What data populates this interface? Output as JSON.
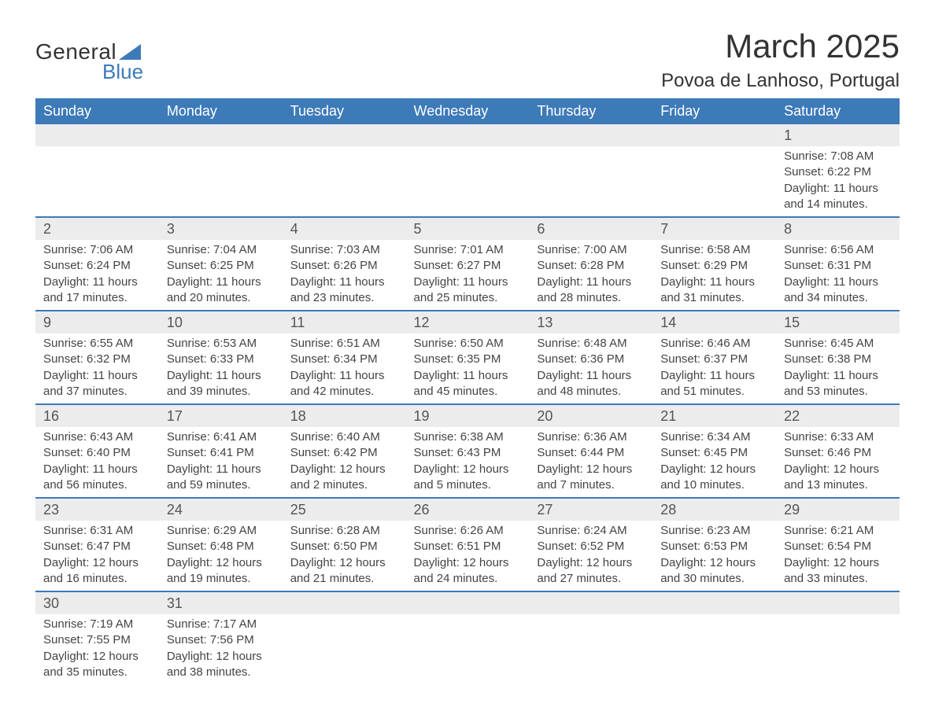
{
  "logo": {
    "text1": "General",
    "text2": "Blue",
    "triangle_color": "#3d7ab8"
  },
  "title": "March 2025",
  "location": "Povoa de Lanhoso, Portugal",
  "colors": {
    "header_bg": "#3d7ab8",
    "header_text": "#ffffff",
    "daynum_bg": "#ececec",
    "border": "#3d7ab8",
    "body_text": "#444444"
  },
  "day_names": [
    "Sunday",
    "Monday",
    "Tuesday",
    "Wednesday",
    "Thursday",
    "Friday",
    "Saturday"
  ],
  "weeks": [
    [
      null,
      null,
      null,
      null,
      null,
      null,
      {
        "d": "1",
        "sr": "Sunrise: 7:08 AM",
        "ss": "Sunset: 6:22 PM",
        "dl1": "Daylight: 11 hours",
        "dl2": "and 14 minutes."
      }
    ],
    [
      {
        "d": "2",
        "sr": "Sunrise: 7:06 AM",
        "ss": "Sunset: 6:24 PM",
        "dl1": "Daylight: 11 hours",
        "dl2": "and 17 minutes."
      },
      {
        "d": "3",
        "sr": "Sunrise: 7:04 AM",
        "ss": "Sunset: 6:25 PM",
        "dl1": "Daylight: 11 hours",
        "dl2": "and 20 minutes."
      },
      {
        "d": "4",
        "sr": "Sunrise: 7:03 AM",
        "ss": "Sunset: 6:26 PM",
        "dl1": "Daylight: 11 hours",
        "dl2": "and 23 minutes."
      },
      {
        "d": "5",
        "sr": "Sunrise: 7:01 AM",
        "ss": "Sunset: 6:27 PM",
        "dl1": "Daylight: 11 hours",
        "dl2": "and 25 minutes."
      },
      {
        "d": "6",
        "sr": "Sunrise: 7:00 AM",
        "ss": "Sunset: 6:28 PM",
        "dl1": "Daylight: 11 hours",
        "dl2": "and 28 minutes."
      },
      {
        "d": "7",
        "sr": "Sunrise: 6:58 AM",
        "ss": "Sunset: 6:29 PM",
        "dl1": "Daylight: 11 hours",
        "dl2": "and 31 minutes."
      },
      {
        "d": "8",
        "sr": "Sunrise: 6:56 AM",
        "ss": "Sunset: 6:31 PM",
        "dl1": "Daylight: 11 hours",
        "dl2": "and 34 minutes."
      }
    ],
    [
      {
        "d": "9",
        "sr": "Sunrise: 6:55 AM",
        "ss": "Sunset: 6:32 PM",
        "dl1": "Daylight: 11 hours",
        "dl2": "and 37 minutes."
      },
      {
        "d": "10",
        "sr": "Sunrise: 6:53 AM",
        "ss": "Sunset: 6:33 PM",
        "dl1": "Daylight: 11 hours",
        "dl2": "and 39 minutes."
      },
      {
        "d": "11",
        "sr": "Sunrise: 6:51 AM",
        "ss": "Sunset: 6:34 PM",
        "dl1": "Daylight: 11 hours",
        "dl2": "and 42 minutes."
      },
      {
        "d": "12",
        "sr": "Sunrise: 6:50 AM",
        "ss": "Sunset: 6:35 PM",
        "dl1": "Daylight: 11 hours",
        "dl2": "and 45 minutes."
      },
      {
        "d": "13",
        "sr": "Sunrise: 6:48 AM",
        "ss": "Sunset: 6:36 PM",
        "dl1": "Daylight: 11 hours",
        "dl2": "and 48 minutes."
      },
      {
        "d": "14",
        "sr": "Sunrise: 6:46 AM",
        "ss": "Sunset: 6:37 PM",
        "dl1": "Daylight: 11 hours",
        "dl2": "and 51 minutes."
      },
      {
        "d": "15",
        "sr": "Sunrise: 6:45 AM",
        "ss": "Sunset: 6:38 PM",
        "dl1": "Daylight: 11 hours",
        "dl2": "and 53 minutes."
      }
    ],
    [
      {
        "d": "16",
        "sr": "Sunrise: 6:43 AM",
        "ss": "Sunset: 6:40 PM",
        "dl1": "Daylight: 11 hours",
        "dl2": "and 56 minutes."
      },
      {
        "d": "17",
        "sr": "Sunrise: 6:41 AM",
        "ss": "Sunset: 6:41 PM",
        "dl1": "Daylight: 11 hours",
        "dl2": "and 59 minutes."
      },
      {
        "d": "18",
        "sr": "Sunrise: 6:40 AM",
        "ss": "Sunset: 6:42 PM",
        "dl1": "Daylight: 12 hours",
        "dl2": "and 2 minutes."
      },
      {
        "d": "19",
        "sr": "Sunrise: 6:38 AM",
        "ss": "Sunset: 6:43 PM",
        "dl1": "Daylight: 12 hours",
        "dl2": "and 5 minutes."
      },
      {
        "d": "20",
        "sr": "Sunrise: 6:36 AM",
        "ss": "Sunset: 6:44 PM",
        "dl1": "Daylight: 12 hours",
        "dl2": "and 7 minutes."
      },
      {
        "d": "21",
        "sr": "Sunrise: 6:34 AM",
        "ss": "Sunset: 6:45 PM",
        "dl1": "Daylight: 12 hours",
        "dl2": "and 10 minutes."
      },
      {
        "d": "22",
        "sr": "Sunrise: 6:33 AM",
        "ss": "Sunset: 6:46 PM",
        "dl1": "Daylight: 12 hours",
        "dl2": "and 13 minutes."
      }
    ],
    [
      {
        "d": "23",
        "sr": "Sunrise: 6:31 AM",
        "ss": "Sunset: 6:47 PM",
        "dl1": "Daylight: 12 hours",
        "dl2": "and 16 minutes."
      },
      {
        "d": "24",
        "sr": "Sunrise: 6:29 AM",
        "ss": "Sunset: 6:48 PM",
        "dl1": "Daylight: 12 hours",
        "dl2": "and 19 minutes."
      },
      {
        "d": "25",
        "sr": "Sunrise: 6:28 AM",
        "ss": "Sunset: 6:50 PM",
        "dl1": "Daylight: 12 hours",
        "dl2": "and 21 minutes."
      },
      {
        "d": "26",
        "sr": "Sunrise: 6:26 AM",
        "ss": "Sunset: 6:51 PM",
        "dl1": "Daylight: 12 hours",
        "dl2": "and 24 minutes."
      },
      {
        "d": "27",
        "sr": "Sunrise: 6:24 AM",
        "ss": "Sunset: 6:52 PM",
        "dl1": "Daylight: 12 hours",
        "dl2": "and 27 minutes."
      },
      {
        "d": "28",
        "sr": "Sunrise: 6:23 AM",
        "ss": "Sunset: 6:53 PM",
        "dl1": "Daylight: 12 hours",
        "dl2": "and 30 minutes."
      },
      {
        "d": "29",
        "sr": "Sunrise: 6:21 AM",
        "ss": "Sunset: 6:54 PM",
        "dl1": "Daylight: 12 hours",
        "dl2": "and 33 minutes."
      }
    ],
    [
      {
        "d": "30",
        "sr": "Sunrise: 7:19 AM",
        "ss": "Sunset: 7:55 PM",
        "dl1": "Daylight: 12 hours",
        "dl2": "and 35 minutes."
      },
      {
        "d": "31",
        "sr": "Sunrise: 7:17 AM",
        "ss": "Sunset: 7:56 PM",
        "dl1": "Daylight: 12 hours",
        "dl2": "and 38 minutes."
      },
      null,
      null,
      null,
      null,
      null
    ]
  ]
}
